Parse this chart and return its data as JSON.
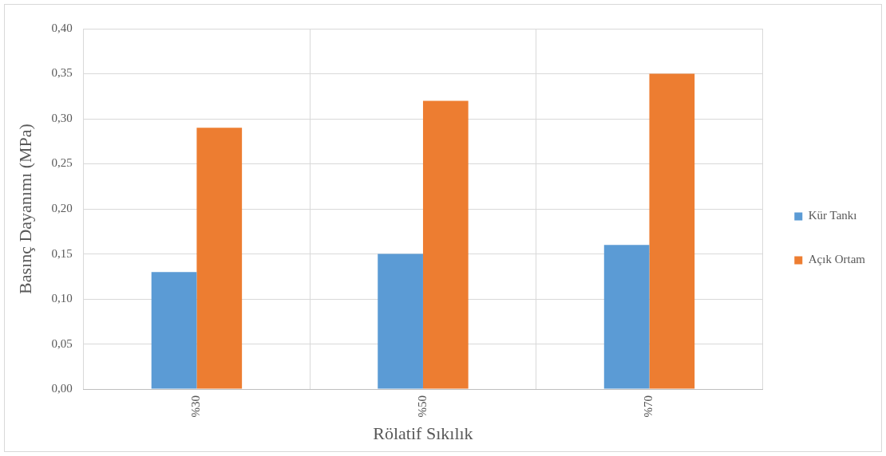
{
  "chart_data": {
    "type": "bar",
    "xlabel": "Rölatif Sıkılık",
    "ylabel": "Basınç Dayanımı (MPa)",
    "categories": [
      "%30",
      "%50",
      "%70"
    ],
    "series": [
      {
        "name": "Kür Tankı",
        "color": "#5b9bd5",
        "values": [
          0.13,
          0.15,
          0.16
        ]
      },
      {
        "name": "Açık Ortam",
        "color": "#ed7d31",
        "values": [
          0.29,
          0.32,
          0.35
        ]
      }
    ],
    "ylim": [
      0,
      0.4
    ],
    "yticks": [
      {
        "value": 0,
        "label": "0,00"
      },
      {
        "value": 0.05,
        "label": "0,05"
      },
      {
        "value": 0.1,
        "label": "0,10"
      },
      {
        "value": 0.15,
        "label": "0,15"
      },
      {
        "value": 0.2,
        "label": "0,20"
      },
      {
        "value": 0.25,
        "label": "0,25"
      },
      {
        "value": 0.3,
        "label": "0,30"
      },
      {
        "value": 0.35,
        "label": "0,35"
      },
      {
        "value": 0.4,
        "label": "0,40"
      }
    ],
    "grid": true,
    "legend": "right"
  }
}
